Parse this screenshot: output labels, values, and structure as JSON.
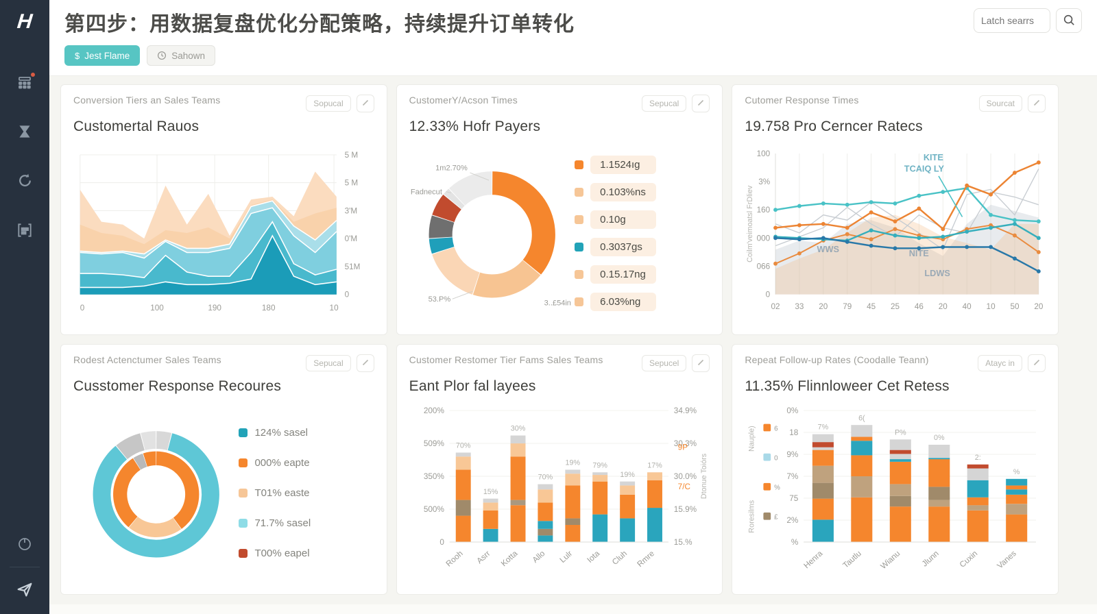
{
  "header": {
    "logo_text": "H",
    "title": "第四步：用数据复盘优化分配策略，持续提升订单转化",
    "search_placeholder": "Latch searrs"
  },
  "filters": {
    "primary_icon": "$",
    "primary_label": "Jest Flame",
    "secondary_label": "Sahown"
  },
  "cards": [
    {
      "eyebrow": "Conversion Tiers an Sales Teams",
      "title": "Customertal Rauos",
      "badge": "Sopucal"
    },
    {
      "eyebrow": "CustomerY/Acson Times",
      "title": "12.33% Hofr Payers",
      "badge": "Sepucal"
    },
    {
      "eyebrow": "Cutomer Response Times",
      "title": "19.758 Pro Cerncer Ratecs",
      "badge": "Sourcat"
    },
    {
      "eyebrow": "Rodest Actenctumer Sales Teams",
      "title": "Cusstomer Response Recoures",
      "badge": "Sepucal"
    },
    {
      "eyebrow": "Customer Restomer Tier Fams Sales Teams",
      "title": "Eant Plor fal layees",
      "badge": "Sepucel"
    },
    {
      "eyebrow": "Repeat Follow-up Rates (Coodalle Teann)",
      "title": "11.35% Flinnloweer Cet Retess",
      "badge": "Atayc in"
    }
  ],
  "chart_data": [
    {
      "type": "area",
      "title": "Customertal Rauos",
      "x_ticks": [
        "0",
        "100",
        "190",
        "180",
        "10"
      ],
      "y_ticks_right": [
        "5 M",
        "5 M",
        "3'M",
        "0'M",
        "51M",
        "0"
      ],
      "grid": true,
      "layers": [
        {
          "name": "peach-outer",
          "color": "#fbdcbf",
          "values": [
            0.75,
            0.52,
            0.5,
            0.4,
            0.78,
            0.5,
            0.72,
            0.42,
            0.68,
            0.7,
            0.56,
            0.88,
            0.7
          ]
        },
        {
          "name": "peach-inner",
          "color": "#f9d2ab",
          "values": [
            0.5,
            0.44,
            0.42,
            0.36,
            0.46,
            0.44,
            0.48,
            0.4,
            0.64,
            0.68,
            0.52,
            0.58,
            0.62
          ]
        },
        {
          "name": "blue-pale",
          "color": "#a9dee9",
          "stroke": "#ffffff",
          "values": [
            0.31,
            0.3,
            0.31,
            0.29,
            0.39,
            0.33,
            0.33,
            0.36,
            0.63,
            0.67,
            0.49,
            0.39,
            0.53
          ]
        },
        {
          "name": "blue-light",
          "color": "#7fcfdf",
          "stroke": "#ffffff",
          "values": [
            0.3,
            0.29,
            0.3,
            0.26,
            0.38,
            0.3,
            0.3,
            0.33,
            0.58,
            0.62,
            0.42,
            0.3,
            0.45
          ]
        },
        {
          "name": "blue-mid",
          "color": "#49b9cd",
          "stroke": "#ffffff",
          "values": [
            0.15,
            0.15,
            0.14,
            0.12,
            0.28,
            0.16,
            0.13,
            0.13,
            0.3,
            0.52,
            0.22,
            0.14,
            0.18
          ]
        },
        {
          "name": "teal-dark",
          "color": "#1b9cb8",
          "stroke": "#ffffff",
          "values": [
            0.05,
            0.05,
            0.05,
            0.06,
            0.09,
            0.07,
            0.07,
            0.08,
            0.11,
            0.42,
            0.13,
            0.07,
            0.09
          ]
        }
      ]
    },
    {
      "type": "donut",
      "title": "12.33% Hofr Payers",
      "rings": [
        {
          "outer": 1.0,
          "inner": 0.63,
          "segments": [
            {
              "color": "#f5862d",
              "value": 36
            },
            {
              "color": "#f7c492",
              "value": 19
            },
            {
              "color": "#fad6b5",
              "value": 15
            },
            {
              "color": "#1f9fba",
              "value": 4
            },
            {
              "color": "#6f6f6f",
              "value": 6
            },
            {
              "color": "#c14b2e",
              "value": 6
            },
            {
              "color": "#e3e3e3",
              "value": 2
            },
            {
              "color": "#ebebeb",
              "value": 12
            }
          ]
        }
      ],
      "labels": [
        {
          "text": "1m2.70%",
          "x": 92,
          "y": 26,
          "anchor": "end",
          "line": [
            [
              96,
              30
            ],
            [
              126,
              42
            ]
          ]
        },
        {
          "text": "Fadnecut",
          "x": 2,
          "y": 64,
          "anchor": "start",
          "line": [
            [
              58,
              60
            ],
            [
              66,
              62
            ]
          ]
        },
        {
          "text": "53.P%",
          "x": 30,
          "y": 234,
          "anchor": "start",
          "line": [
            [
              68,
              230
            ],
            [
              100,
              218
            ]
          ]
        },
        {
          "text": "3..£54in",
          "x": 256,
          "y": 240,
          "anchor": "end"
        }
      ],
      "legend": [
        {
          "color": "#f5862d",
          "label": "1.1524ıg"
        },
        {
          "color": "#f6c697",
          "label": "0.103%ns"
        },
        {
          "color": "#f6c697",
          "label": "0.10g"
        },
        {
          "color": "#22a3b8",
          "label": "0.3037gs"
        },
        {
          "color": "#f6c697",
          "label": "0.15.17ng"
        },
        {
          "color": "#f6c697",
          "label": "6.03%ng"
        }
      ],
      "legend_style": "pill"
    },
    {
      "type": "line",
      "title": "19.758 Pro Cerncer Ratecs",
      "y_axis_title": "Coilm'veimoatsl FrDliev",
      "y_ticks": [
        "100",
        "3%",
        "160",
        "000",
        "066",
        "0"
      ],
      "x_ticks": [
        "02",
        "33",
        "20",
        "79",
        "45",
        "25",
        "46",
        "20",
        "40",
        "10",
        "50",
        "20"
      ],
      "ymax": 110,
      "areas": [
        {
          "color": "#b9c2ca",
          "opacity": 0.32,
          "values": [
            35,
            42,
            40,
            55,
            58,
            52,
            40,
            30,
            55,
            70,
            65,
            60
          ]
        },
        {
          "color": "#f3b87e",
          "opacity": 0.28,
          "values": [
            20,
            28,
            35,
            48,
            60,
            62,
            55,
            45,
            40,
            35,
            55,
            55
          ]
        }
      ],
      "series": [
        {
          "name": "gray-1",
          "color": "#c8cdd2",
          "width": 1.4,
          "markers": false,
          "values": [
            55,
            48,
            62,
            58,
            72,
            60,
            48,
            35,
            78,
            82,
            62,
            98
          ]
        },
        {
          "name": "gray-2",
          "color": "#c8cdd2",
          "width": 1.4,
          "markers": false,
          "values": [
            38,
            45,
            52,
            68,
            55,
            45,
            62,
            52,
            48,
            80,
            76,
            70
          ]
        },
        {
          "name": "orange-low",
          "color": "#e98b3f",
          "width": 2,
          "markers": true,
          "values": [
            24,
            32,
            42,
            47,
            43,
            51,
            46,
            43,
            51,
            54,
            46,
            33
          ]
        },
        {
          "name": "teal-mid",
          "color": "#35aebc",
          "width": 2.5,
          "markers": true,
          "values": [
            45,
            44,
            43,
            42,
            50,
            46,
            44,
            45,
            49,
            52,
            55,
            44
          ]
        },
        {
          "name": "blue-dark",
          "color": "#2878a8",
          "width": 2.5,
          "markers": true,
          "values": [
            44,
            43,
            44,
            41,
            38,
            36,
            36,
            37,
            37,
            37,
            28,
            18
          ]
        },
        {
          "name": "teal-bright",
          "color": "#49c2c6",
          "width": 2.5,
          "markers": true,
          "values": [
            66,
            69,
            71,
            70,
            72,
            71,
            77,
            80,
            83,
            62,
            58,
            57
          ]
        },
        {
          "name": "orange-main",
          "color": "#ec8433",
          "width": 2.5,
          "markers": true,
          "values": [
            52,
            54,
            55,
            52,
            64,
            57,
            67,
            51,
            85,
            78,
            95,
            103
          ]
        }
      ],
      "annotations": [
        {
          "text": "KITE",
          "x": 0.6,
          "y": 0.95,
          "color": "#6fb3c4"
        },
        {
          "text": "TCAIQ LY",
          "x": 0.565,
          "y": 0.87,
          "color": "#6fb3c4",
          "line": [
            0.62,
            0.84,
            0.71,
            0.55
          ]
        },
        {
          "text": "WWS",
          "x": 0.2,
          "y": 0.3,
          "color": "#9aa9b5"
        },
        {
          "text": "NITE",
          "x": 0.545,
          "y": 0.27,
          "color": "#9aa9b5"
        },
        {
          "text": "LDWS",
          "x": 0.615,
          "y": 0.13,
          "color": "#9aa9b5"
        }
      ]
    },
    {
      "type": "donut",
      "title": "Cusstomer Response Recoures",
      "rings": [
        {
          "outer": 1.0,
          "inner": 0.72,
          "segments": [
            {
              "color": "#d8d8d8",
              "value": 4
            },
            {
              "color": "#5ec7d6",
              "value": 85
            },
            {
              "color": "#c6c6c6",
              "value": 7
            },
            {
              "color": "#e2e2e2",
              "value": 4
            }
          ]
        },
        {
          "outer": 0.68,
          "inner": 0.46,
          "segments": [
            {
              "color": "#f5862d",
              "value": 40
            },
            {
              "color": "#f8c796",
              "value": 21
            },
            {
              "color": "#f5862d",
              "value": 30
            },
            {
              "color": "#b9b9b9",
              "value": 4
            },
            {
              "color": "#f5862d",
              "value": 5
            }
          ]
        }
      ],
      "labels": [],
      "legend": [
        {
          "color": "#22a3b8",
          "label": "124% sasel"
        },
        {
          "color": "#f5862d",
          "label": "000% eapte"
        },
        {
          "color": "#f6c697",
          "label": "T01% easte"
        },
        {
          "color": "#8edce6",
          "label": "71.7% sasel"
        },
        {
          "color": "#c14b2e",
          "label": "T00% eapel"
        }
      ],
      "legend_style": "plain"
    },
    {
      "type": "bar",
      "title": "Eant Plor fal layees",
      "categories": [
        "Rooh",
        "Asrr",
        "Kotta",
        "Allo",
        "Lulr",
        "Iota",
        "Cluh",
        "Rmre"
      ],
      "y_ticks_left": [
        "200%",
        "509%",
        "350%",
        "500%",
        "0"
      ],
      "y_ticks_right": [
        "34.9%",
        "30.3%",
        "30.0%",
        "15.9%",
        "15.%"
      ],
      "right_annotations": [
        {
          "text": "9P",
          "pos": 0.7
        },
        {
          "text": "7/C",
          "pos": 0.4
        }
      ],
      "right_axis_title": "Dtonue Toiórs",
      "bar_labels": [
        "70%",
        "15%",
        "30%",
        "70%",
        "19%",
        "79%",
        "19%",
        "17%"
      ],
      "bars": [
        [
          {
            "c": "#f5862d",
            "v": 0.2
          },
          {
            "c": "#a08a6a",
            "v": 0.12
          },
          {
            "c": "#f5862d",
            "v": 0.23
          },
          {
            "c": "#f8c796",
            "v": 0.1
          },
          {
            "c": "#d5d5d5",
            "v": 0.03
          }
        ],
        [
          {
            "c": "#2aa5bd",
            "v": 0.1
          },
          {
            "c": "#f5862d",
            "v": 0.14
          },
          {
            "c": "#f8c796",
            "v": 0.06
          },
          {
            "c": "#d5d5d5",
            "v": 0.03
          }
        ],
        [
          {
            "c": "#f5862d",
            "v": 0.28
          },
          {
            "c": "#a9987f",
            "v": 0.04
          },
          {
            "c": "#f5862d",
            "v": 0.33
          },
          {
            "c": "#f8c796",
            "v": 0.1
          },
          {
            "c": "#d5d5d5",
            "v": 0.06
          }
        ],
        [
          {
            "c": "#2aa5bd",
            "v": 0.05
          },
          {
            "c": "#a08a6a",
            "v": 0.05
          },
          {
            "c": "#2aa5bd",
            "v": 0.06
          },
          {
            "c": "#f5862d",
            "v": 0.14
          },
          {
            "c": "#f8c796",
            "v": 0.1
          },
          {
            "c": "#d5d5d5",
            "v": 0.04
          }
        ],
        [
          {
            "c": "#f5862d",
            "v": 0.13
          },
          {
            "c": "#a08a6a",
            "v": 0.05
          },
          {
            "c": "#f5862d",
            "v": 0.25
          },
          {
            "c": "#f8c796",
            "v": 0.09
          },
          {
            "c": "#d5d5d5",
            "v": 0.03
          }
        ],
        [
          {
            "c": "#2aa5bd",
            "v": 0.21
          },
          {
            "c": "#f5862d",
            "v": 0.25
          },
          {
            "c": "#f8c796",
            "v": 0.05
          },
          {
            "c": "#d5d5d5",
            "v": 0.02
          }
        ],
        [
          {
            "c": "#2aa5bd",
            "v": 0.18
          },
          {
            "c": "#f5862d",
            "v": 0.18
          },
          {
            "c": "#f8c796",
            "v": 0.07
          },
          {
            "c": "#d5d5d5",
            "v": 0.03
          }
        ],
        [
          {
            "c": "#2aa5bd",
            "v": 0.26
          },
          {
            "c": "#f5862d",
            "v": 0.21
          },
          {
            "c": "#f8c796",
            "v": 0.06
          }
        ]
      ]
    },
    {
      "type": "bar",
      "title": "11.35% Flinnloweer Cet Retess",
      "categories": [
        "Henra",
        "Tautlu",
        "Wianu",
        "Jlunn",
        "Cuxin",
        "Vanes"
      ],
      "y_ticks_left": [
        "0%",
        "18",
        "9%",
        "7%",
        "75",
        "2%",
        "%"
      ],
      "bar_labels": [
        "7%",
        "6(",
        "P%",
        "0%",
        "2:",
        "%"
      ],
      "left_axis_titles": [
        "Nauple)",
        "Roresilms"
      ],
      "side_legend": [
        {
          "c": "#f5862d",
          "label": "6"
        },
        {
          "c": "#a9d9e8",
          "label": "0"
        },
        {
          "c": "#f5862d",
          "label": "%"
        },
        {
          "c": "#a08a6a",
          "label": "£"
        }
      ],
      "bars": [
        [
          {
            "c": "#2aa5bd",
            "v": 0.17
          },
          {
            "c": "#f5862d",
            "v": 0.16
          },
          {
            "c": "#a08a6a",
            "v": 0.12
          },
          {
            "c": "#bfa27e",
            "v": 0.13
          },
          {
            "c": "#f5862d",
            "v": 0.12
          },
          {
            "c": "#d5d5d5",
            "v": 0.02
          },
          {
            "c": "#c14b2e",
            "v": 0.04
          },
          {
            "c": "#d5d5d5",
            "v": 0.06
          }
        ],
        [
          {
            "c": "#f5862d",
            "v": 0.34
          },
          {
            "c": "#bfa27e",
            "v": 0.16
          },
          {
            "c": "#f5862d",
            "v": 0.16
          },
          {
            "c": "#2aa5bd",
            "v": 0.11
          },
          {
            "c": "#f5862d",
            "v": 0.03
          },
          {
            "c": "#d5d5d5",
            "v": 0.09
          }
        ],
        [
          {
            "c": "#f5862d",
            "v": 0.27
          },
          {
            "c": "#a08a6a",
            "v": 0.08
          },
          {
            "c": "#bfa27e",
            "v": 0.09
          },
          {
            "c": "#f5862d",
            "v": 0.17
          },
          {
            "c": "#2aa5bd",
            "v": 0.02
          },
          {
            "c": "#d5d5d5",
            "v": 0.04
          },
          {
            "c": "#c14b2e",
            "v": 0.03
          },
          {
            "c": "#d5d5d5",
            "v": 0.08
          }
        ],
        [
          {
            "c": "#f5862d",
            "v": 0.27
          },
          {
            "c": "#bfa27e",
            "v": 0.05
          },
          {
            "c": "#a08a6a",
            "v": 0.1
          },
          {
            "c": "#f5862d",
            "v": 0.21
          },
          {
            "c": "#2aa5bd",
            "v": 0.01
          },
          {
            "c": "#d5d5d5",
            "v": 0.1
          }
        ],
        [
          {
            "c": "#f5862d",
            "v": 0.24
          },
          {
            "c": "#bfa27e",
            "v": 0.04
          },
          {
            "c": "#f5862d",
            "v": 0.06
          },
          {
            "c": "#2aa5bd",
            "v": 0.13
          },
          {
            "c": "#d5d5d5",
            "v": 0.09
          },
          {
            "c": "#c14b2e",
            "v": 0.03
          }
        ],
        [
          {
            "c": "#f5862d",
            "v": 0.21
          },
          {
            "c": "#bfa27e",
            "v": 0.08
          },
          {
            "c": "#f5862d",
            "v": 0.07
          },
          {
            "c": "#2aa5bd",
            "v": 0.04
          },
          {
            "c": "#f5862d",
            "v": 0.03
          },
          {
            "c": "#2aa5bd",
            "v": 0.05
          }
        ]
      ]
    }
  ]
}
